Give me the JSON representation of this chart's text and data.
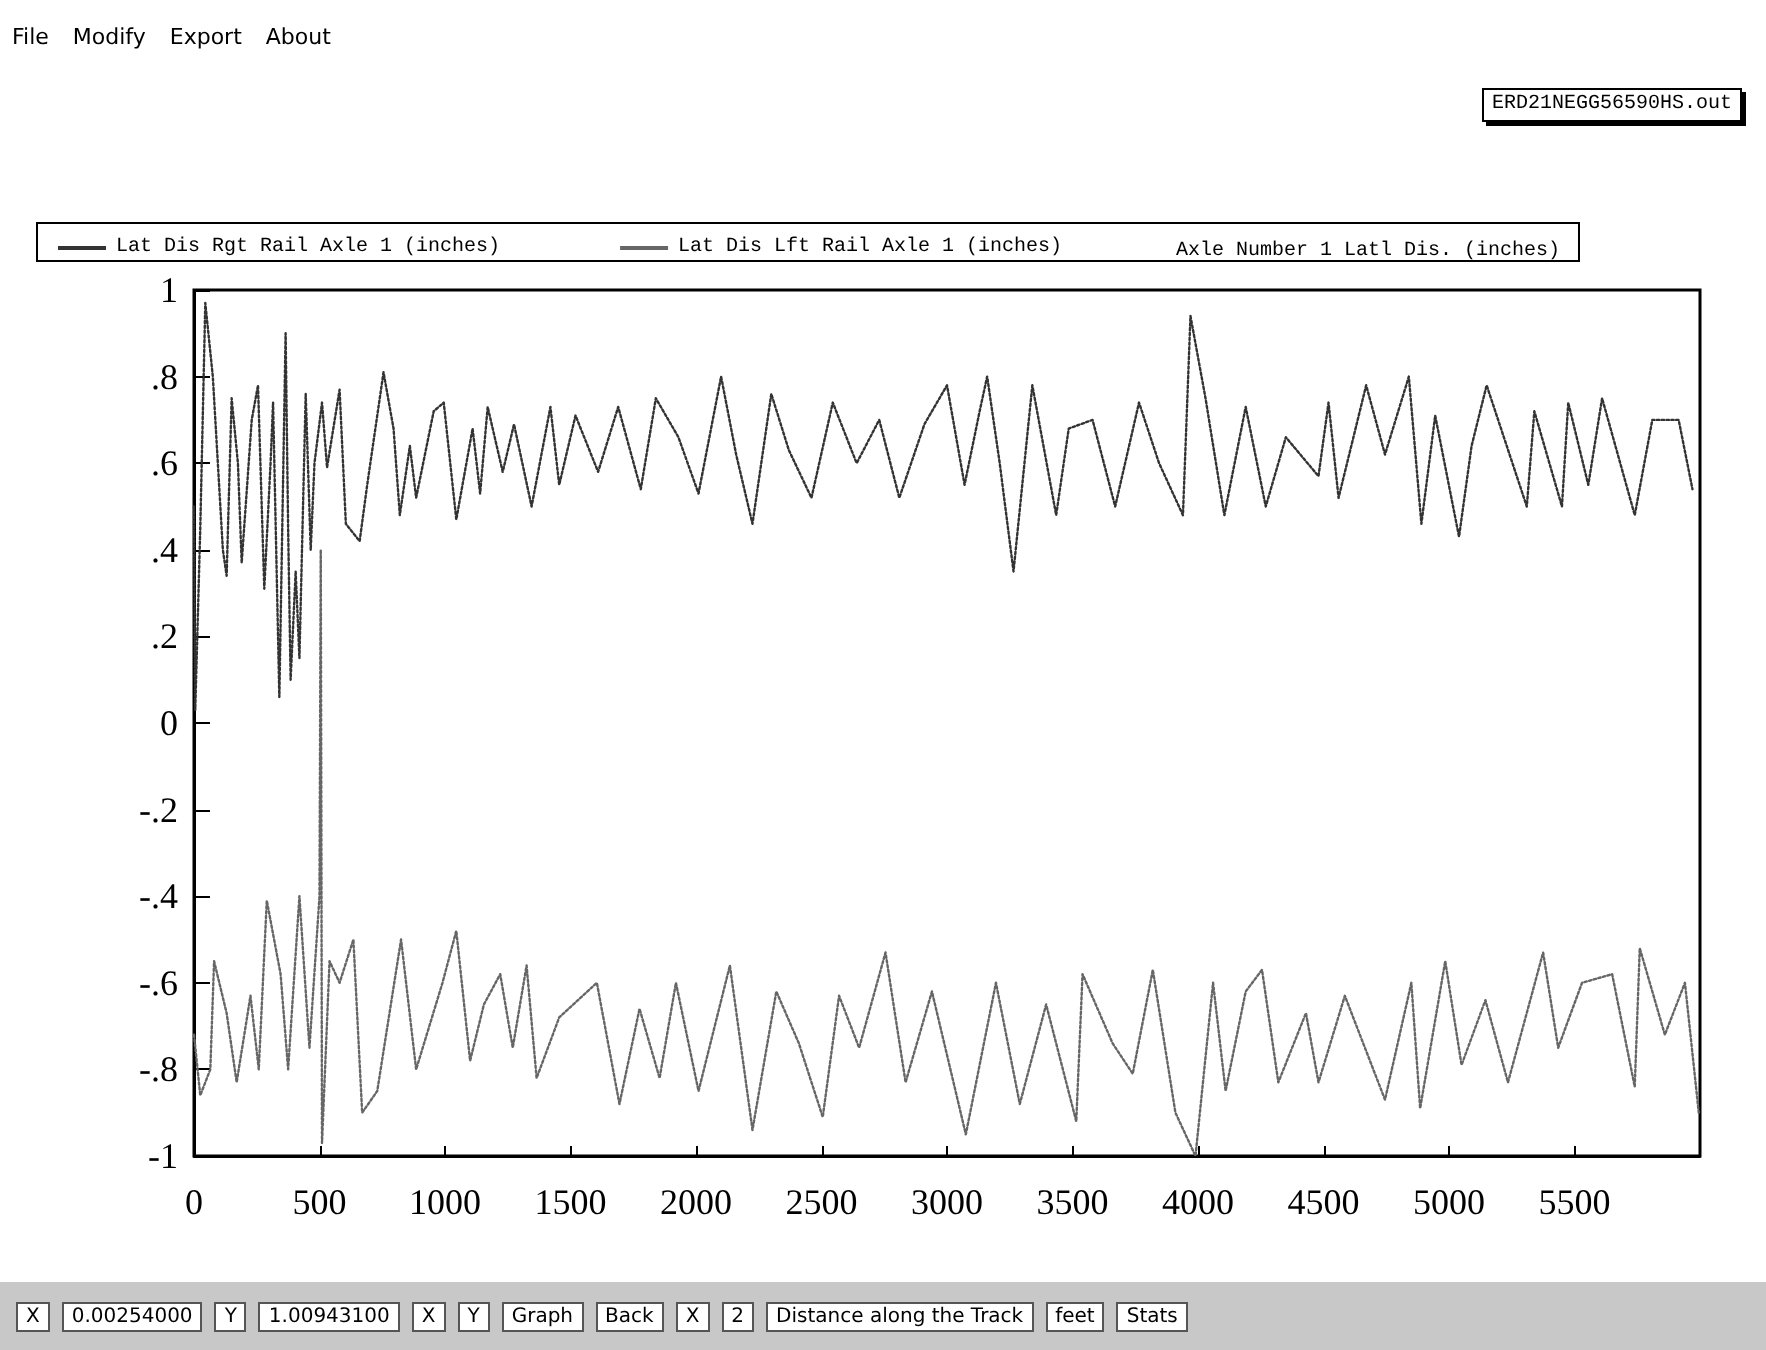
{
  "chart_data": {
    "type": "line",
    "title": "Axle Number 1 Latl Dis. (inches)",
    "xlabel": "Distance along the Track",
    "annotations": [
      "File",
      "Modify",
      "Export",
      "About",
      "ERD21NEGG56590HS.out",
      "X",
      "0.00254000",
      "Y",
      "1.00943100",
      "X",
      "Y",
      "Graph",
      "Back",
      "X",
      "2",
      "feet",
      "Stats"
    ],
    "xlim": [
      0,
      6000
    ],
    "xticks": [
      0,
      500,
      1000,
      1500,
      2000,
      2500,
      3000,
      3500,
      4000,
      4500,
      5000,
      5500
    ],
    "ylim": [
      -1,
      1
    ],
    "yticks": [
      {
        "value": -1,
        "label": "-1"
      },
      {
        "value": -0.8,
        "label": "-.8"
      },
      {
        "value": -0.6,
        "label": "-.6"
      },
      {
        "value": -0.4,
        "label": "-.4"
      },
      {
        "value": -0.2,
        "label": "-.2"
      },
      {
        "value": 0,
        "label": "0"
      },
      {
        "value": 0.2,
        "label": ".2"
      },
      {
        "value": 0.4,
        "label": ".4"
      },
      {
        "value": 0.6,
        "label": ".6"
      },
      {
        "value": 0.8,
        "label": ".8"
      },
      {
        "value": 1,
        "label": "1"
      }
    ],
    "grid": false,
    "legend": "top left",
    "marker": "none",
    "line_style": "dotted",
    "series": [
      {
        "name": "Lat Dis Rgt Rail Axle 1 (inches)",
        "color": "#333333",
        "x": [
          0,
          5,
          25,
          45,
          75,
          95,
          115,
          130,
          150,
          175,
          190,
          230,
          255,
          280,
          305,
          315,
          340,
          365,
          375,
          385,
          405,
          420,
          445,
          465,
          480,
          510,
          530,
          580,
          605,
          660,
          690,
          755,
          795,
          820,
          860,
          885,
          955,
          995,
          1045,
          1110,
          1140,
          1170,
          1230,
          1275,
          1345,
          1420,
          1455,
          1520,
          1610,
          1690,
          1780,
          1840,
          1930,
          2010,
          2100,
          2160,
          2225,
          2300,
          2370,
          2460,
          2545,
          2640,
          2730,
          2810,
          2910,
          3000,
          3070,
          3130,
          3160,
          3210,
          3265,
          3340,
          3435,
          3485,
          3580,
          3670,
          3765,
          3845,
          3940,
          3970,
          4030,
          4105,
          4190,
          4270,
          4350,
          4480,
          4520,
          4560,
          4670,
          4745,
          4840,
          4890,
          4945,
          5040,
          5090,
          5150,
          5310,
          5340,
          5450,
          5475,
          5555,
          5610,
          5740,
          5810,
          5915,
          5970
        ],
        "values": [
          0.5,
          0.03,
          0.45,
          0.97,
          0.8,
          0.6,
          0.4,
          0.34,
          0.75,
          0.6,
          0.37,
          0.7,
          0.78,
          0.31,
          0.6,
          0.74,
          0.06,
          0.9,
          0.45,
          0.1,
          0.35,
          0.15,
          0.76,
          0.4,
          0.6,
          0.74,
          0.59,
          0.77,
          0.46,
          0.42,
          0.55,
          0.81,
          0.68,
          0.48,
          0.64,
          0.52,
          0.72,
          0.74,
          0.47,
          0.68,
          0.53,
          0.73,
          0.58,
          0.69,
          0.5,
          0.73,
          0.55,
          0.71,
          0.58,
          0.73,
          0.54,
          0.75,
          0.66,
          0.53,
          0.8,
          0.62,
          0.46,
          0.76,
          0.63,
          0.52,
          0.74,
          0.6,
          0.7,
          0.52,
          0.69,
          0.78,
          0.55,
          0.72,
          0.8,
          0.6,
          0.35,
          0.78,
          0.48,
          0.68,
          0.7,
          0.5,
          0.74,
          0.6,
          0.48,
          0.94,
          0.75,
          0.48,
          0.73,
          0.5,
          0.66,
          0.57,
          0.74,
          0.52,
          0.78,
          0.62,
          0.8,
          0.46,
          0.71,
          0.43,
          0.64,
          0.78,
          0.5,
          0.72,
          0.5,
          0.74,
          0.55,
          0.75,
          0.48,
          0.7,
          0.7,
          0.54
        ]
      },
      {
        "name": "Lat Dis Lft Rail Axle 1 (inches)",
        "color": "#666666",
        "x": [
          0,
          25,
          65,
          80,
          130,
          170,
          225,
          258,
          290,
          345,
          375,
          420,
          460,
          500,
          505,
          510,
          540,
          580,
          635,
          670,
          730,
          825,
          885,
          990,
          1045,
          1100,
          1155,
          1220,
          1270,
          1325,
          1365,
          1455,
          1605,
          1695,
          1775,
          1855,
          1920,
          2010,
          2135,
          2225,
          2320,
          2410,
          2505,
          2570,
          2650,
          2755,
          2835,
          2940,
          3075,
          3195,
          3290,
          3395,
          3515,
          3540,
          3660,
          3740,
          3820,
          3910,
          3990,
          4060,
          4110,
          4190,
          4255,
          4320,
          4430,
          4480,
          4585,
          4745,
          4850,
          4885,
          4985,
          5050,
          5145,
          5235,
          5375,
          5435,
          5530,
          5650,
          5740,
          5760,
          5860,
          5940,
          5995
        ],
        "values": [
          -0.72,
          -0.86,
          -0.8,
          -0.55,
          -0.67,
          -0.83,
          -0.63,
          -0.8,
          -0.41,
          -0.58,
          -0.8,
          -0.4,
          -0.75,
          -0.4,
          0.4,
          -0.97,
          -0.55,
          -0.6,
          -0.5,
          -0.9,
          -0.85,
          -0.5,
          -0.8,
          -0.6,
          -0.48,
          -0.78,
          -0.65,
          -0.58,
          -0.75,
          -0.56,
          -0.82,
          -0.68,
          -0.6,
          -0.88,
          -0.66,
          -0.82,
          -0.6,
          -0.85,
          -0.56,
          -0.94,
          -0.62,
          -0.74,
          -0.91,
          -0.63,
          -0.75,
          -0.53,
          -0.83,
          -0.62,
          -0.95,
          -0.6,
          -0.88,
          -0.65,
          -0.92,
          -0.58,
          -0.74,
          -0.81,
          -0.57,
          -0.9,
          -1.0,
          -0.6,
          -0.85,
          -0.62,
          -0.57,
          -0.83,
          -0.67,
          -0.83,
          -0.63,
          -0.87,
          -0.6,
          -0.89,
          -0.55,
          -0.79,
          -0.64,
          -0.83,
          -0.53,
          -0.75,
          -0.6,
          -0.58,
          -0.84,
          -0.52,
          -0.72,
          -0.6,
          -0.9
        ]
      }
    ]
  }
}
